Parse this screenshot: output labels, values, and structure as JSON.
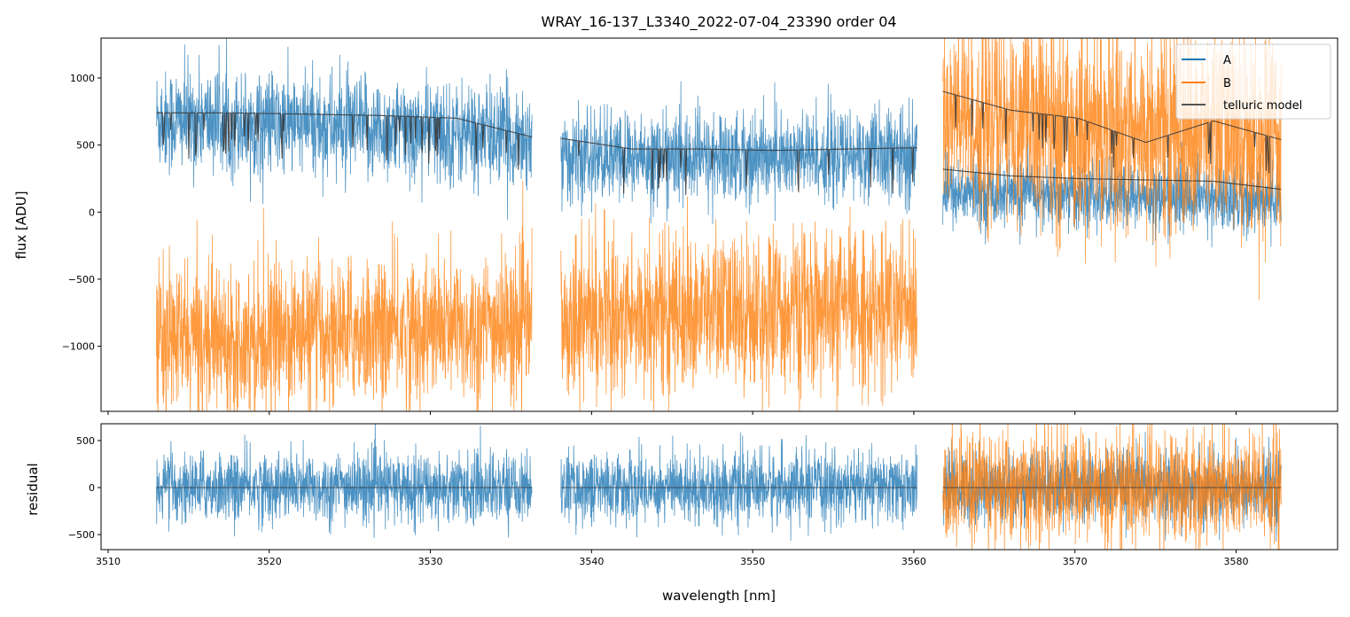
{
  "chart_data": {
    "type": "line",
    "title": "WRAY_16-137_L3340_2022-07-04_23390  order 04",
    "xlabel": "wavelength [nm]",
    "xlim": [
      3509.56,
      3586.3
    ],
    "xticks": [
      3510,
      3520,
      3530,
      3540,
      3550,
      3560,
      3570,
      3580
    ],
    "xtick_labels": [
      "3510",
      "3520",
      "3530",
      "3540",
      "3550",
      "3560",
      "3570",
      "3580"
    ],
    "panels": [
      {
        "name": "spectrum",
        "ylabel": "flux [ADU]",
        "ylim": [
          -1485,
          1297
        ],
        "yticks": [
          1000,
          500,
          0,
          -500,
          -1000
        ],
        "ytick_labels": [
          "1000",
          "500",
          "0",
          "−500",
          "−1000"
        ],
        "segments": [
          {
            "x": [
              3513.0,
              3536.3
            ],
            "A_mean": [
              700,
              560
            ],
            "A_std": 170,
            "B_mean": [
              -950,
              -850
            ],
            "B_std": 240
          },
          {
            "x": [
              3538.1,
              3560.2
            ],
            "A_mean": [
              400,
              420
            ],
            "A_std": 150,
            "B_mean": [
              -780,
              -720
            ],
            "B_std": 260
          },
          {
            "x": [
              3561.8,
              3582.8
            ],
            "A_mean": [
              150,
              90
            ],
            "A_std": 110,
            "B_mean": [
              700,
              550
            ],
            "B_std": 340
          }
        ],
        "telluric_model": [
          {
            "segment": 0,
            "levels": [
              740,
              740,
              730,
              720,
              700,
              560
            ]
          },
          {
            "segment": 1,
            "levels": [
              550,
              470,
              470,
              460,
              470,
              480
            ]
          },
          {
            "segment": 2,
            "levels": [
              900,
              760,
              700,
              520,
              680,
              540
            ],
            "second_levels": [
              320,
              270,
              250,
              240,
              230,
              170
            ]
          }
        ]
      },
      {
        "name": "residual",
        "ylabel": "residual",
        "ylim": [
          -660,
          679
        ],
        "yticks": [
          500,
          0,
          -500
        ],
        "ytick_labels": [
          "500",
          "0",
          "−500"
        ],
        "A_std": 165,
        "B_std": 270
      }
    ],
    "legend": {
      "placement": "top-right",
      "entries": [
        "A",
        "B",
        "telluric model"
      ]
    },
    "colors": {
      "A": "#1f77b4",
      "B": "#ff7f0e",
      "model": "#333333"
    }
  }
}
